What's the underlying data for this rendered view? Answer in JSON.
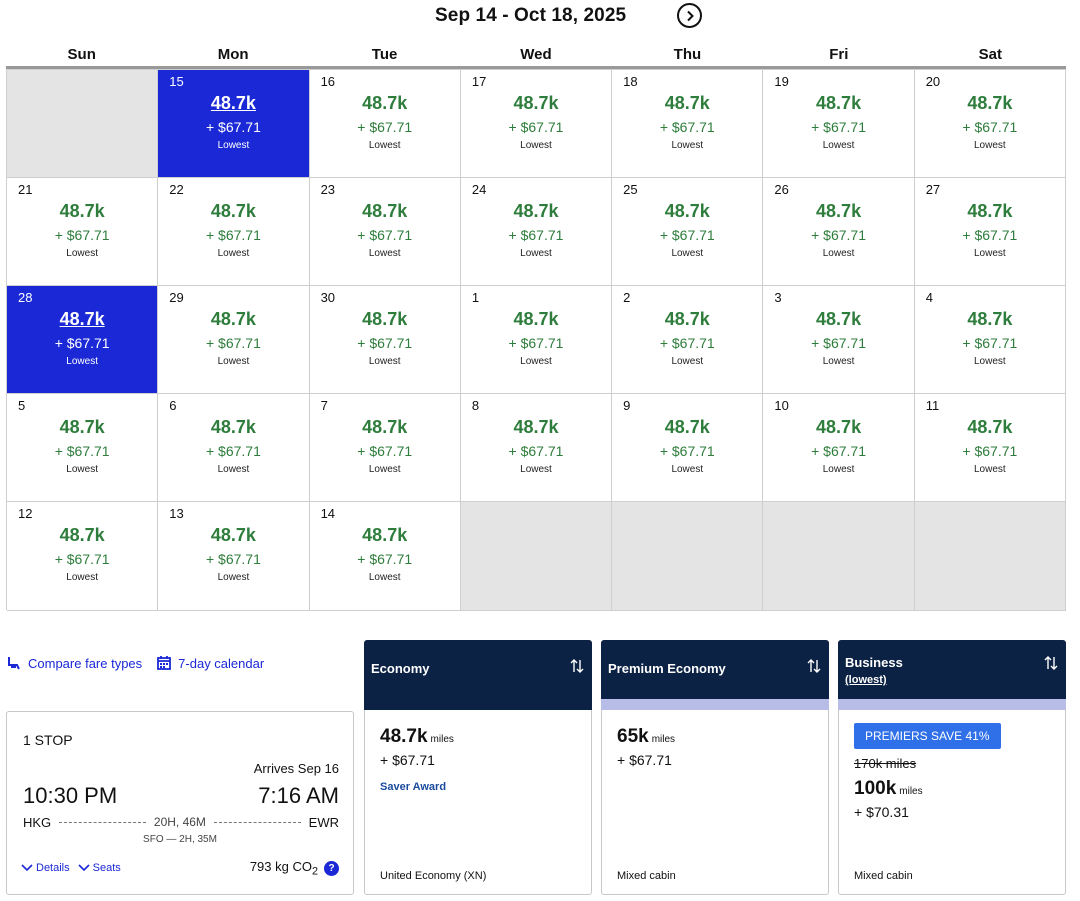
{
  "header": {
    "range": "Sep 14 - Oct 18, 2025",
    "next_icon": "chevron-right-circle-icon"
  },
  "weekdays": [
    "Sun",
    "Mon",
    "Tue",
    "Wed",
    "Thu",
    "Fri",
    "Sat"
  ],
  "colors": {
    "selected": "#1a28d6",
    "price": "#2e7d3c",
    "empty": "#e4e4e4",
    "fare_header": "#0b2244"
  },
  "calendar": {
    "days": [
      {
        "empty": true
      },
      {
        "day": "15",
        "miles": "48.7k",
        "tax": "+ $67.71",
        "tag": "Lowest",
        "selected": true
      },
      {
        "day": "16",
        "miles": "48.7k",
        "tax": "+ $67.71",
        "tag": "Lowest"
      },
      {
        "day": "17",
        "miles": "48.7k",
        "tax": "+ $67.71",
        "tag": "Lowest"
      },
      {
        "day": "18",
        "miles": "48.7k",
        "tax": "+ $67.71",
        "tag": "Lowest"
      },
      {
        "day": "19",
        "miles": "48.7k",
        "tax": "+ $67.71",
        "tag": "Lowest"
      },
      {
        "day": "20",
        "miles": "48.7k",
        "tax": "+ $67.71",
        "tag": "Lowest"
      },
      {
        "day": "21",
        "miles": "48.7k",
        "tax": "+ $67.71",
        "tag": "Lowest"
      },
      {
        "day": "22",
        "miles": "48.7k",
        "tax": "+ $67.71",
        "tag": "Lowest"
      },
      {
        "day": "23",
        "miles": "48.7k",
        "tax": "+ $67.71",
        "tag": "Lowest"
      },
      {
        "day": "24",
        "miles": "48.7k",
        "tax": "+ $67.71",
        "tag": "Lowest"
      },
      {
        "day": "25",
        "miles": "48.7k",
        "tax": "+ $67.71",
        "tag": "Lowest"
      },
      {
        "day": "26",
        "miles": "48.7k",
        "tax": "+ $67.71",
        "tag": "Lowest"
      },
      {
        "day": "27",
        "miles": "48.7k",
        "tax": "+ $67.71",
        "tag": "Lowest"
      },
      {
        "day": "28",
        "miles": "48.7k",
        "tax": "+ $67.71",
        "tag": "Lowest",
        "selected": true
      },
      {
        "day": "29",
        "miles": "48.7k",
        "tax": "+ $67.71",
        "tag": "Lowest"
      },
      {
        "day": "30",
        "miles": "48.7k",
        "tax": "+ $67.71",
        "tag": "Lowest"
      },
      {
        "day": "1",
        "miles": "48.7k",
        "tax": "+ $67.71",
        "tag": "Lowest"
      },
      {
        "day": "2",
        "miles": "48.7k",
        "tax": "+ $67.71",
        "tag": "Lowest"
      },
      {
        "day": "3",
        "miles": "48.7k",
        "tax": "+ $67.71",
        "tag": "Lowest"
      },
      {
        "day": "4",
        "miles": "48.7k",
        "tax": "+ $67.71",
        "tag": "Lowest"
      },
      {
        "day": "5",
        "miles": "48.7k",
        "tax": "+ $67.71",
        "tag": "Lowest"
      },
      {
        "day": "6",
        "miles": "48.7k",
        "tax": "+ $67.71",
        "tag": "Lowest"
      },
      {
        "day": "7",
        "miles": "48.7k",
        "tax": "+ $67.71",
        "tag": "Lowest"
      },
      {
        "day": "8",
        "miles": "48.7k",
        "tax": "+ $67.71",
        "tag": "Lowest"
      },
      {
        "day": "9",
        "miles": "48.7k",
        "tax": "+ $67.71",
        "tag": "Lowest"
      },
      {
        "day": "10",
        "miles": "48.7k",
        "tax": "+ $67.71",
        "tag": "Lowest"
      },
      {
        "day": "11",
        "miles": "48.7k",
        "tax": "+ $67.71",
        "tag": "Lowest"
      },
      {
        "day": "12",
        "miles": "48.7k",
        "tax": "+ $67.71",
        "tag": "Lowest"
      },
      {
        "day": "13",
        "miles": "48.7k",
        "tax": "+ $67.71",
        "tag": "Lowest"
      },
      {
        "day": "14",
        "miles": "48.7k",
        "tax": "+ $67.71",
        "tag": "Lowest"
      },
      {
        "empty": true
      },
      {
        "empty": true
      },
      {
        "empty": true
      },
      {
        "empty": true
      }
    ]
  },
  "links": {
    "compare": "Compare fare types",
    "compare_icon": "seat-icon",
    "calendar7": "7-day calendar",
    "calendar7_icon": "calendar-icon"
  },
  "flight": {
    "stops": "1 STOP",
    "arrives": "Arrives Sep 16",
    "depart_time": "10:30 PM",
    "arrive_time": "7:16 AM",
    "origin": "HKG",
    "destination": "EWR",
    "duration": "20H, 46M",
    "via": "SFO — 2H, 35M",
    "details": "Details",
    "seats": "Seats",
    "co2_value": "793 kg CO",
    "co2_sub": "2",
    "help": "?"
  },
  "fares": {
    "economy": {
      "title": "Economy",
      "miles": "48.7k",
      "miles_unit": "miles",
      "tax": "+ $67.71",
      "award": "Saver Award",
      "cabin": "United Economy (XN)"
    },
    "premium": {
      "title": "Premium Economy",
      "miles": "65k",
      "miles_unit": "miles",
      "tax": "+ $67.71",
      "cabin": "Mixed cabin"
    },
    "business": {
      "title": "Business",
      "subtitle": "(lowest)",
      "badge": "PREMIERS SAVE 41%",
      "old_miles": "170k miles",
      "miles": "100k",
      "miles_unit": "miles",
      "tax": "+ $70.31",
      "cabin": "Mixed cabin"
    }
  }
}
